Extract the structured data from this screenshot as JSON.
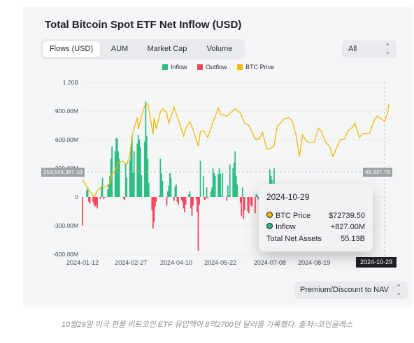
{
  "title": "Total Bitcoin Spot ETF Net Inflow (USD)",
  "tabs": [
    "Flows (USD)",
    "AUM",
    "Market Cap",
    "Volume"
  ],
  "active_tab": "Flows (USD)",
  "filter": {
    "value": "All"
  },
  "chart_data": {
    "type": "bar+line",
    "legend": [
      {
        "name": "Inflow",
        "color": "#2ebd85"
      },
      {
        "name": "Outflow",
        "color": "#f6465d"
      },
      {
        "name": "BTC Price",
        "color": "#f0b90b"
      }
    ],
    "y_ticks": [
      "1.20B",
      "900.00M",
      "600.00M",
      "300.00M",
      "0",
      "-300.00M",
      "-600.00M"
    ],
    "y_range": [
      -600000000,
      1200000000
    ],
    "x_ticks": [
      "2024-01-12",
      "2024-02-27",
      "2024-04-10",
      "2024-05-22",
      "2024-07-08",
      "2024-08-19",
      "2024-10-29"
    ],
    "x_range": [
      "2024-01-12",
      "2024-10-29"
    ],
    "crosshair": {
      "left_value": "253,548,387.10",
      "right_value": "48,337.78",
      "date": "2024-10-29"
    },
    "grid": true,
    "series": [
      {
        "name": "Inflow / Outflow",
        "unit": "USD",
        "points": [
          [
            "2024-01-12",
            -300000000
          ],
          [
            "2024-01-16",
            70000000
          ],
          [
            "2024-01-17",
            100000000
          ],
          [
            "2024-01-18",
            -50000000
          ],
          [
            "2024-01-19",
            -70000000
          ],
          [
            "2024-01-22",
            -50000000
          ],
          [
            "2024-01-23",
            -80000000
          ],
          [
            "2024-01-24",
            -100000000
          ],
          [
            "2024-01-25",
            -80000000
          ],
          [
            "2024-01-26",
            -120000000
          ],
          [
            "2024-01-29",
            -20000000
          ],
          [
            "2024-01-30",
            100000000
          ],
          [
            "2024-01-31",
            200000000
          ],
          [
            "2024-02-01",
            -20000000
          ],
          [
            "2024-02-02",
            -10000000
          ],
          [
            "2024-02-05",
            80000000
          ],
          [
            "2024-02-06",
            140000000
          ],
          [
            "2024-02-07",
            220000000
          ],
          [
            "2024-02-08",
            400000000
          ],
          [
            "2024-02-09",
            530000000
          ],
          [
            "2024-02-12",
            480000000
          ],
          [
            "2024-02-13",
            620000000
          ],
          [
            "2024-02-14",
            610000000
          ],
          [
            "2024-02-15",
            480000000
          ],
          [
            "2024-02-16",
            400000000
          ],
          [
            "2024-02-20",
            -20000000
          ],
          [
            "2024-02-21",
            -30000000
          ],
          [
            "2024-02-22",
            350000000
          ],
          [
            "2024-02-23",
            200000000
          ],
          [
            "2024-02-26",
            380000000
          ],
          [
            "2024-02-27",
            520000000
          ],
          [
            "2024-02-28",
            640000000
          ],
          [
            "2024-02-29",
            250000000
          ],
          [
            "2024-03-01",
            480000000
          ],
          [
            "2024-03-04",
            560000000
          ],
          [
            "2024-03-05",
            650000000
          ],
          [
            "2024-03-06",
            600000000
          ],
          [
            "2024-03-07",
            520000000
          ],
          [
            "2024-03-08",
            230000000
          ],
          [
            "2024-03-11",
            580000000
          ],
          [
            "2024-03-12",
            1000000000
          ],
          [
            "2024-03-13",
            640000000
          ],
          [
            "2024-03-14",
            400000000
          ],
          [
            "2024-03-15",
            150000000
          ],
          [
            "2024-03-18",
            -140000000
          ],
          [
            "2024-03-19",
            -330000000
          ],
          [
            "2024-03-20",
            -260000000
          ],
          [
            "2024-03-21",
            -100000000
          ],
          [
            "2024-03-22",
            -50000000
          ],
          [
            "2024-03-25",
            20000000
          ],
          [
            "2024-03-26",
            400000000
          ],
          [
            "2024-03-27",
            250000000
          ],
          [
            "2024-03-28",
            170000000
          ],
          [
            "2024-04-01",
            -90000000
          ],
          [
            "2024-04-02",
            60000000
          ],
          [
            "2024-04-03",
            120000000
          ],
          [
            "2024-04-04",
            250000000
          ],
          [
            "2024-04-05",
            200000000
          ],
          [
            "2024-04-08",
            -40000000
          ],
          [
            "2024-04-09",
            110000000
          ],
          [
            "2024-04-10",
            130000000
          ],
          [
            "2024-04-11",
            -50000000
          ],
          [
            "2024-04-12",
            -80000000
          ],
          [
            "2024-04-15",
            -30000000
          ],
          [
            "2024-04-16",
            -50000000
          ],
          [
            "2024-04-17",
            -120000000
          ],
          [
            "2024-04-18",
            -160000000
          ],
          [
            "2024-04-19",
            -80000000
          ],
          [
            "2024-04-22",
            30000000
          ],
          [
            "2024-04-23",
            60000000
          ],
          [
            "2024-04-24",
            -120000000
          ],
          [
            "2024-04-25",
            -200000000
          ],
          [
            "2024-04-26",
            -90000000
          ],
          [
            "2024-04-29",
            -25000000
          ],
          [
            "2024-04-30",
            -160000000
          ],
          [
            "2024-05-01",
            -563000000
          ],
          [
            "2024-05-02",
            -80000000
          ],
          [
            "2024-05-03",
            380000000
          ],
          [
            "2024-05-06",
            220000000
          ],
          [
            "2024-05-07",
            -30000000
          ],
          [
            "2024-05-08",
            -20000000
          ],
          [
            "2024-05-09",
            100000000
          ],
          [
            "2024-05-10",
            -15000000
          ],
          [
            "2024-05-13",
            60000000
          ],
          [
            "2024-05-14",
            100000000
          ],
          [
            "2024-05-15",
            300000000
          ],
          [
            "2024-05-16",
            250000000
          ],
          [
            "2024-05-17",
            220000000
          ],
          [
            "2024-05-20",
            240000000
          ],
          [
            "2024-05-21",
            300000000
          ],
          [
            "2024-05-22",
            240000000
          ],
          [
            "2024-05-23",
            10000000
          ],
          [
            "2024-05-24",
            250000000
          ],
          [
            "2024-05-28",
            -40000000
          ],
          [
            "2024-05-29",
            120000000
          ],
          [
            "2024-05-30",
            20000000
          ],
          [
            "2024-05-31",
            340000000
          ],
          [
            "2024-06-03",
            300000000
          ],
          [
            "2024-06-04",
            360000000
          ],
          [
            "2024-06-05",
            480000000
          ],
          [
            "2024-06-06",
            220000000
          ],
          [
            "2024-06-07",
            130000000
          ],
          [
            "2024-06-10",
            -60000000
          ],
          [
            "2024-06-11",
            -200000000
          ],
          [
            "2024-06-12",
            100000000
          ],
          [
            "2024-06-13",
            -230000000
          ],
          [
            "2024-06-14",
            -140000000
          ],
          [
            "2024-06-17",
            -150000000
          ],
          [
            "2024-06-18",
            -170000000
          ],
          [
            "2024-06-20",
            -90000000
          ],
          [
            "2024-06-21",
            -100000000
          ],
          [
            "2024-06-24",
            -170000000
          ],
          [
            "2024-06-25",
            30000000
          ],
          [
            "2024-06-26",
            20000000
          ],
          [
            "2024-06-27",
            -25000000
          ],
          [
            "2024-06-28",
            60000000
          ],
          [
            "2024-07-01",
            120000000
          ],
          [
            "2024-07-02",
            -20000000
          ],
          [
            "2024-07-03",
            -50000000
          ],
          [
            "2024-07-05",
            140000000
          ],
          [
            "2024-07-08",
            290000000
          ],
          [
            "2024-07-09",
            220000000
          ],
          [
            "2024-07-10",
            180000000
          ],
          [
            "2024-07-11",
            80000000
          ],
          [
            "2024-07-12",
            300000000
          ]
        ]
      },
      {
        "name": "BTC Price",
        "unit": "USD",
        "points": [
          [
            "2024-01-12",
            46000
          ],
          [
            "2024-01-16",
            43000
          ],
          [
            "2024-01-19",
            41500
          ],
          [
            "2024-01-23",
            39500
          ],
          [
            "2024-01-26",
            41800
          ],
          [
            "2024-01-30",
            43200
          ],
          [
            "2024-02-02",
            43000
          ],
          [
            "2024-02-07",
            44300
          ],
          [
            "2024-02-09",
            47500
          ],
          [
            "2024-02-13",
            49700
          ],
          [
            "2024-02-15",
            52000
          ],
          [
            "2024-02-20",
            52200
          ],
          [
            "2024-02-23",
            51000
          ],
          [
            "2024-02-26",
            54500
          ],
          [
            "2024-02-28",
            61000
          ],
          [
            "2024-02-29",
            62500
          ],
          [
            "2024-03-04",
            68000
          ],
          [
            "2024-03-05",
            63800
          ],
          [
            "2024-03-08",
            68300
          ],
          [
            "2024-03-11",
            72000
          ],
          [
            "2024-03-14",
            73000
          ],
          [
            "2024-03-19",
            62000
          ],
          [
            "2024-03-20",
            67800
          ],
          [
            "2024-03-22",
            63800
          ],
          [
            "2024-03-26",
            70000
          ],
          [
            "2024-03-28",
            71000
          ],
          [
            "2024-04-01",
            69700
          ],
          [
            "2024-04-03",
            65900
          ],
          [
            "2024-04-08",
            71600
          ],
          [
            "2024-04-12",
            67200
          ],
          [
            "2024-04-17",
            61300
          ],
          [
            "2024-04-20",
            64900
          ],
          [
            "2024-04-23",
            66400
          ],
          [
            "2024-04-26",
            63700
          ],
          [
            "2024-05-01",
            57700
          ],
          [
            "2024-05-03",
            62900
          ],
          [
            "2024-05-06",
            63200
          ],
          [
            "2024-05-10",
            60800
          ],
          [
            "2024-05-15",
            66200
          ],
          [
            "2024-05-20",
            71400
          ],
          [
            "2024-05-22",
            69200
          ],
          [
            "2024-05-28",
            68400
          ],
          [
            "2024-06-05",
            71100
          ],
          [
            "2024-06-10",
            69600
          ],
          [
            "2024-06-14",
            66000
          ],
          [
            "2024-06-18",
            65100
          ],
          [
            "2024-06-24",
            60300
          ],
          [
            "2024-06-28",
            60300
          ],
          [
            "2024-07-01",
            62600
          ],
          [
            "2024-07-05",
            56700
          ],
          [
            "2024-07-08",
            56700
          ],
          [
            "2024-07-12",
            57900
          ],
          [
            "2024-07-15",
            64800
          ],
          [
            "2024-07-22",
            67600
          ],
          [
            "2024-07-26",
            67900
          ],
          [
            "2024-07-29",
            66800
          ],
          [
            "2024-08-02",
            61400
          ],
          [
            "2024-08-05",
            54000
          ],
          [
            "2024-08-08",
            61700
          ],
          [
            "2024-08-12",
            59300
          ],
          [
            "2024-08-16",
            58900
          ],
          [
            "2024-08-19",
            59000
          ],
          [
            "2024-08-23",
            64100
          ],
          [
            "2024-08-26",
            62900
          ],
          [
            "2024-08-30",
            59100
          ],
          [
            "2024-09-03",
            57400
          ],
          [
            "2024-09-06",
            53900
          ],
          [
            "2024-09-10",
            57600
          ],
          [
            "2024-09-13",
            60000
          ],
          [
            "2024-09-17",
            60300
          ],
          [
            "2024-09-20",
            63200
          ],
          [
            "2024-09-24",
            64300
          ],
          [
            "2024-09-27",
            65800
          ],
          [
            "2024-10-01",
            60800
          ],
          [
            "2024-10-04",
            62100
          ],
          [
            "2024-10-08",
            62200
          ],
          [
            "2024-10-11",
            62500
          ],
          [
            "2024-10-15",
            67000
          ],
          [
            "2024-10-18",
            68400
          ],
          [
            "2024-10-22",
            67400
          ],
          [
            "2024-10-25",
            66600
          ],
          [
            "2024-10-28",
            69900
          ],
          [
            "2024-10-29",
            72739.5
          ]
        ]
      }
    ],
    "tooltip": {
      "date": "2024-10-29",
      "rows": [
        {
          "label": "BTC Price",
          "value": "$72739.50"
        },
        {
          "label": "Inflow",
          "value": "+827.00M"
        },
        {
          "label": "Total Net Assets",
          "value": "55.13B"
        }
      ]
    }
  },
  "nav_select": {
    "value": "Premium/Discount to NAV"
  },
  "caption": "10월29일 미국 현물 비트코인 ETF 유입액이 8억2700만 달러를 기록했다. 출처=코인글래스",
  "colors": {
    "inflow": "#2ebd85",
    "outflow": "#f6465d",
    "price": "#f0b90b",
    "tag_gray": "#9fa3a9",
    "tag_dark": "#1e2026"
  }
}
